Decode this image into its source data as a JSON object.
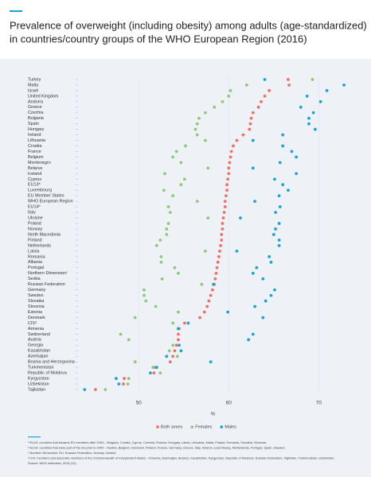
{
  "chart_data": {
    "type": "dot",
    "title": [
      "Prevalence of overweight (including obesity) among adults (age-standardized)",
      "in countries/country groups of the WHO European Region (2016)"
    ],
    "xlabel": "%",
    "categories": [
      "Turkey",
      "Malta",
      "Israel",
      "United Kingdom",
      "Andorra",
      "Greece",
      "Czechia",
      "Bulgaria",
      "Spain",
      "Hungary",
      "Ireland",
      "Lithuania",
      "Croatia",
      "France",
      "Belgium",
      "Montenegro",
      "Belarus",
      "Iceland",
      "Cyprus",
      "EU13ᵃ",
      "Luxembourg",
      "EU Member States",
      "WHO European Region",
      "EU14ᵇ",
      "Italy",
      "Ukraine",
      "Poland",
      "Norway",
      "North Macedonia",
      "Finland",
      "Netherlands",
      "Latvia",
      "Romania",
      "Albania",
      "Portugal",
      "Northern Dimensionᶜ",
      "Serbia",
      "Russian Federation",
      "Germany",
      "Sweden",
      "Slovakia",
      "Slovenia",
      "Estonia",
      "Denmark",
      "CISᵈ",
      "Armenia",
      "Switzerland",
      "Austria",
      "Georgia",
      "Kazakhstan",
      "Azerbaijan",
      "Bosnia and Herzegovina",
      "Turkmenistan",
      "Republic of Moldova",
      "Kyrgyzstan",
      "Uzbekistan",
      "Tajikistan"
    ],
    "series": [
      {
        "name": "Both sexes",
        "color": "#f07064",
        "values": [
          66.6,
          66.7,
          64.5,
          64.0,
          63.6,
          63.3,
          62.7,
          62.5,
          62.4,
          62.3,
          61.6,
          60.9,
          60.5,
          60.3,
          60.2,
          60.1,
          60.0,
          60.0,
          59.9,
          59.8,
          59.8,
          59.7,
          59.6,
          59.6,
          59.5,
          59.4,
          59.3,
          59.3,
          59.2,
          59.2,
          59.1,
          59.0,
          58.9,
          58.8,
          58.7,
          58.6,
          58.5,
          58.4,
          58.2,
          58.0,
          57.8,
          57.6,
          57.3,
          56.8,
          55.1,
          54.5,
          54.4,
          54.4,
          54.2,
          54.0,
          53.8,
          53.5,
          51.8,
          51.7,
          48.4,
          48.3,
          45.2
        ]
      },
      {
        "name": "Females",
        "color": "#8cc97a",
        "values": [
          69.3,
          62.0,
          60.2,
          60.0,
          59.3,
          58.4,
          57.4,
          56.7,
          56.5,
          56.3,
          56.5,
          57.4,
          55.2,
          54.2,
          53.8,
          54.7,
          57.7,
          52.9,
          55.1,
          54.7,
          52.8,
          53.8,
          56.5,
          53.3,
          53.5,
          57.7,
          53.3,
          53.1,
          53.1,
          52.4,
          52.0,
          57.4,
          52.5,
          52.5,
          54.0,
          54.4,
          52.6,
          57.0,
          50.6,
          50.6,
          50.8,
          51.9,
          54.4,
          49.6,
          53.8,
          54.4,
          48.0,
          48.9,
          53.8,
          53.4,
          54.3,
          49.6,
          51.6,
          52.4,
          48.9,
          48.8,
          46.3
        ]
      },
      {
        "name": "Males",
        "color": "#1aa3d6",
        "values": [
          64.0,
          72.8,
          70.9,
          68.7,
          70.2,
          68.0,
          69.4,
          68.9,
          68.9,
          69.6,
          66.0,
          62.7,
          66.0,
          67.0,
          67.5,
          65.7,
          62.7,
          67.5,
          65.1,
          66.0,
          66.6,
          65.6,
          62.9,
          65.7,
          65.2,
          61.3,
          65.6,
          65.2,
          65.0,
          65.6,
          65.6,
          60.9,
          64.5,
          64.7,
          63.1,
          62.7,
          63.8,
          58.3,
          65.1,
          64.7,
          64.1,
          62.9,
          59.9,
          63.8,
          55.5,
          54.4,
          62.7,
          62.2,
          54.5,
          54.7,
          53.1,
          58.0,
          52.0,
          51.3,
          47.5,
          47.8,
          44.0
        ]
      }
    ],
    "xlim": [
      43,
      73.5
    ],
    "xticks": [
      50,
      60,
      70
    ],
    "grid": true,
    "notes": [
      "ᵃ EU13: countries that became EU members after 2004 – Bulgaria, Croatia, Cyprus, Czechia, Estonia, Hungary, Latvia, Lithuania, Malta, Poland, Romania, Slovakia, Slovenia.",
      "ᵇ EU14: countries that were part of the EU prior to 2004 – Austria, Belgium, Denmark, Finland, France, Germany, Greece, Italy, Ireland, Luxembourg, Netherlands, Portugal, Spain, Sweden.",
      "ᶜ Northern Dimension: EU, Russian Federation, Norway, Iceland.",
      "ᵈ CIS: members and associate members of the Commonwealth of Independent States – Armenia, Azerbaijan, Belarus, Kazakhstan, Kyrgyzstan, Republic of Moldova, Russian Federation, Tajikistan, Turkmenistan, Uzbekistan.",
      "Source: WHO estimates, 2016 (12)."
    ]
  }
}
